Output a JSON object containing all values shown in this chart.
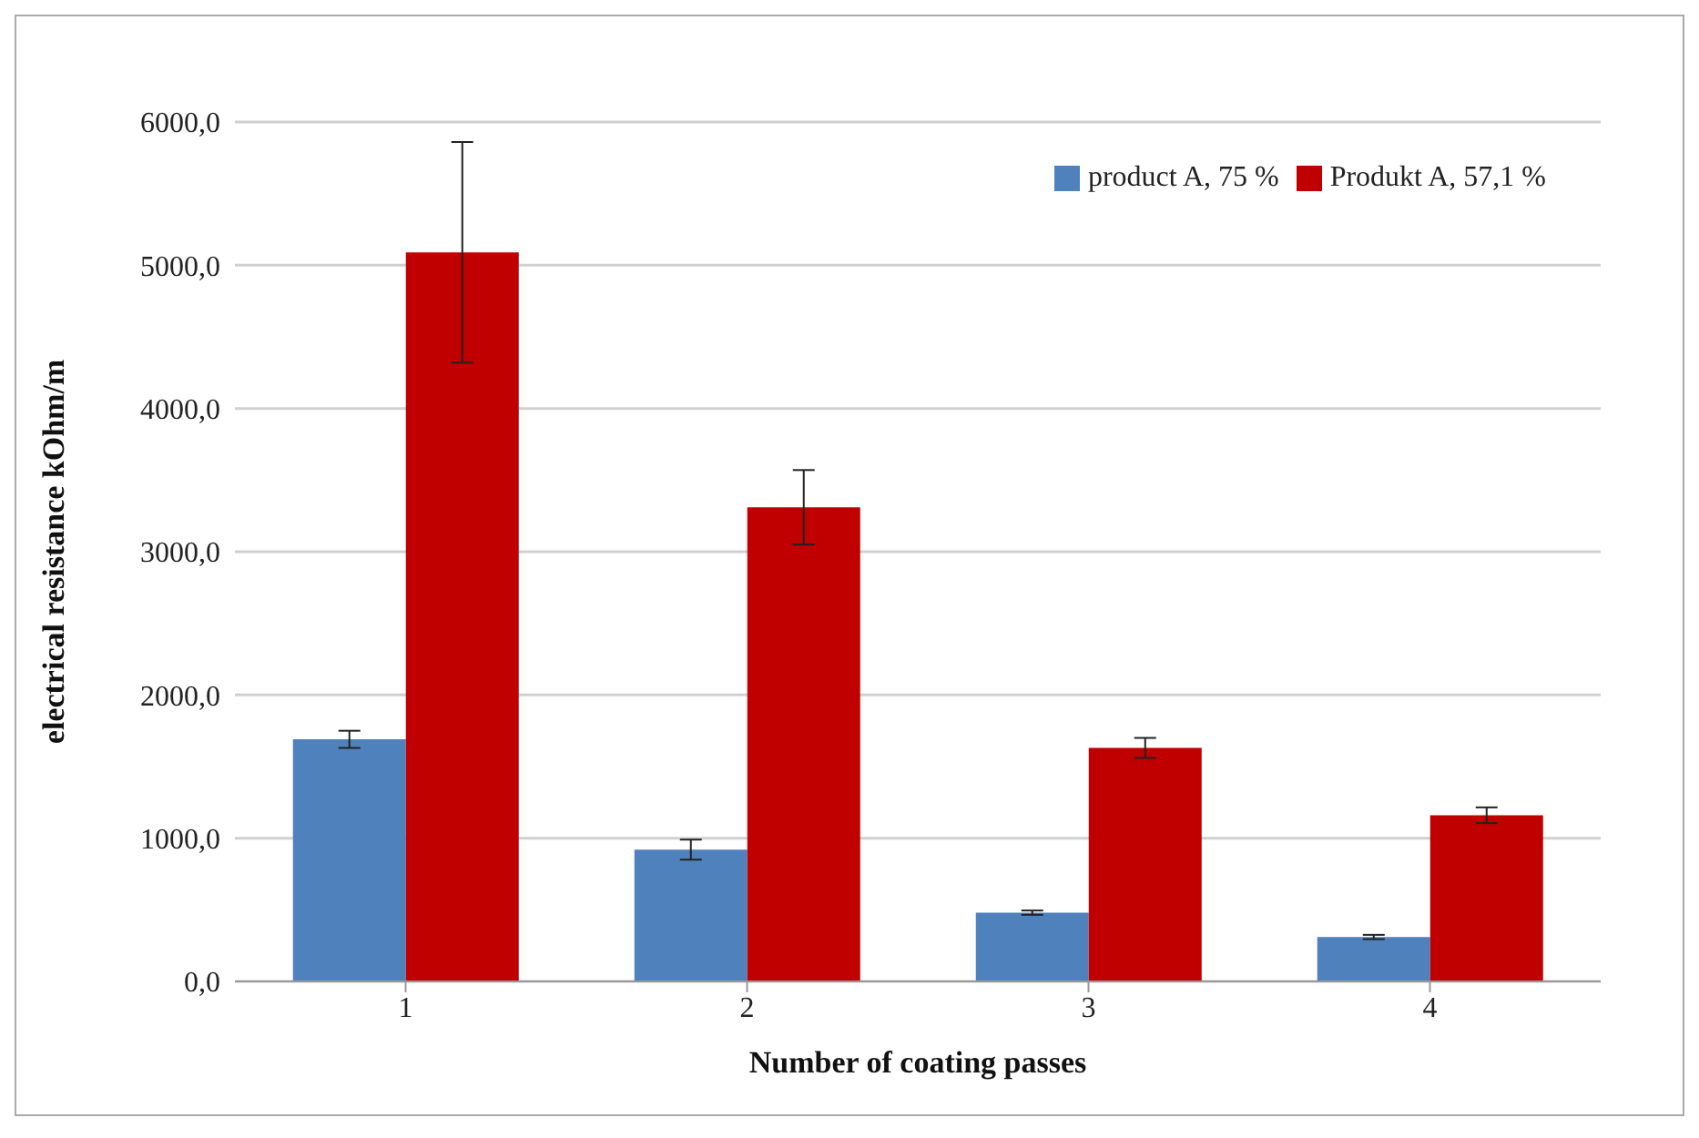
{
  "chart_data": {
    "type": "bar",
    "xlabel": "Number of coating passes",
    "ylabel": "electrical resistance  kOhm/m",
    "categories": [
      "1",
      "2",
      "3",
      "4"
    ],
    "series": [
      {
        "name": "product A, 75 %",
        "color": "#4f81bd",
        "values": [
          1690,
          920,
          480,
          310
        ],
        "errors": [
          60,
          70,
          15,
          15
        ]
      },
      {
        "name": "Produkt A, 57,1 %",
        "color": "#c00000",
        "values": [
          5090,
          3310,
          1630,
          1160
        ],
        "errors": [
          770,
          260,
          70,
          55
        ]
      }
    ],
    "ylim": [
      0,
      6000
    ],
    "yticks": [
      {
        "value": 0,
        "label": "0,0"
      },
      {
        "value": 1000,
        "label": "1000,0"
      },
      {
        "value": 2000,
        "label": "2000,0"
      },
      {
        "value": 3000,
        "label": "3000,0"
      },
      {
        "value": 4000,
        "label": "4000,0"
      },
      {
        "value": 5000,
        "label": "5000,0"
      },
      {
        "value": 6000,
        "label": "6000,0"
      }
    ],
    "grid": "y",
    "legend": "top right"
  }
}
